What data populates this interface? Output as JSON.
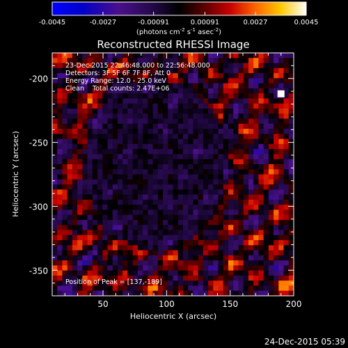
{
  "chart_data": {
    "type": "heatmap",
    "title": "Reconstructed RHESSI Image",
    "xlabel": "Heliocentric X (arcsec)",
    "ylabel": "Heliocentric Y (arcsec)",
    "xlim": [
      10,
      200
    ],
    "ylim": [
      -370,
      -180
    ],
    "x_ticks": [
      50,
      100,
      150,
      200
    ],
    "y_ticks": [
      -200,
      -250,
      -300,
      -350
    ],
    "colorbar": {
      "range": [
        -0.0045,
        0.0045
      ],
      "ticks": [
        "-0.0045",
        "-0.0027",
        "-0.00091",
        "0.00091",
        "0.0027",
        "0.0045"
      ],
      "unit_label": "(photons cm",
      "unit_sup1": "-2",
      "unit_mid": " s",
      "unit_sup2": "-1",
      "unit_mid2": " asec",
      "unit_sup3": "-2",
      "unit_end": ")"
    },
    "annotations": {
      "time_range": "23-Dec-2015 22:46:48.000 to 22:56:48.000",
      "detectors": "Detectors: 3F 5F 6F 7F 8F, Att 0",
      "energy_range": "Energy Range: 12.0 - 25.0 keV",
      "method_counts": "Clean    Total counts: 2.47E+06",
      "peak_position": "Position of Peak = [137,-189]"
    },
    "footer_timestamp": "24-Dec-2015 05:39"
  }
}
